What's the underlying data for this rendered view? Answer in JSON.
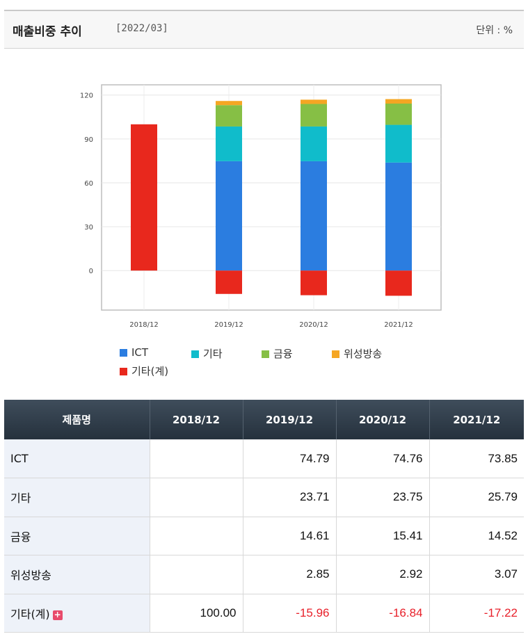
{
  "header": {
    "title": "매출비중 추이",
    "date": "[2022/03]",
    "unit": "단위 : %"
  },
  "chart_data": {
    "type": "bar",
    "stacked": true,
    "categories": [
      "2018/12",
      "2019/12",
      "2020/12",
      "2021/12"
    ],
    "series": [
      {
        "name": "ICT",
        "color": "#2b7de0",
        "values": [
          0,
          74.79,
          74.76,
          73.85
        ]
      },
      {
        "name": "기타",
        "color": "#10bccb",
        "values": [
          0,
          23.71,
          23.75,
          25.79
        ]
      },
      {
        "name": "금융",
        "color": "#86bf45",
        "values": [
          0,
          14.61,
          15.41,
          14.52
        ]
      },
      {
        "name": "위성방송",
        "color": "#f5a623",
        "values": [
          0,
          2.85,
          2.92,
          3.07
        ]
      },
      {
        "name": "기타(계)",
        "color": "#e8281d",
        "values": [
          100.0,
          -15.96,
          -16.84,
          -17.22
        ]
      }
    ],
    "yticks": [
      120,
      90,
      60,
      30,
      0
    ],
    "ylim": [
      -27,
      127
    ],
    "legend_position": "bottom",
    "grid": true
  },
  "table": {
    "headers": [
      "제품명",
      "2018/12",
      "2019/12",
      "2020/12",
      "2021/12"
    ],
    "rows": [
      {
        "name": "ICT",
        "values": [
          "",
          "74.79",
          "74.76",
          "73.85"
        ]
      },
      {
        "name": "기타",
        "values": [
          "",
          "23.71",
          "23.75",
          "25.79"
        ]
      },
      {
        "name": "금융",
        "values": [
          "",
          "14.61",
          "15.41",
          "14.52"
        ]
      },
      {
        "name": "위성방송",
        "values": [
          "",
          "2.85",
          "2.92",
          "3.07"
        ]
      },
      {
        "name": "기타(계)",
        "values": [
          "100.00",
          "-15.96",
          "-16.84",
          "-17.22"
        ]
      }
    ]
  }
}
